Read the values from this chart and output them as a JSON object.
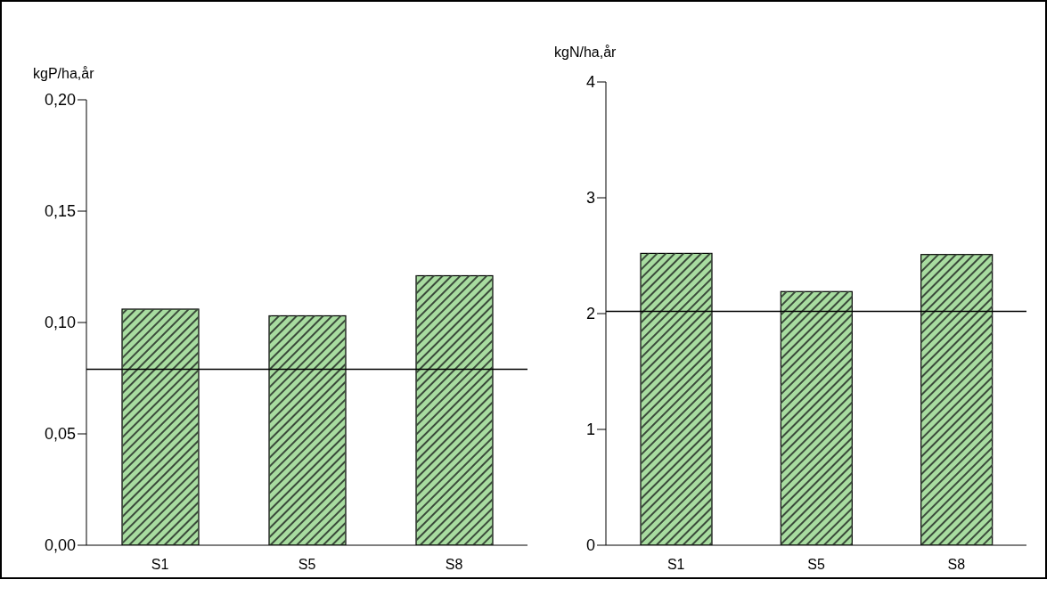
{
  "chart_data": [
    {
      "type": "bar",
      "ylabel": "kgP/ha,år",
      "categories": [
        "S1",
        "S5",
        "S8"
      ],
      "values": [
        0.106,
        0.103,
        0.121
      ],
      "color": "#a8dca0",
      "ylim": [
        0,
        0.2
      ],
      "yticks": [
        {
          "value": 0,
          "label": "0,00"
        },
        {
          "value": 0.05,
          "label": "0,05"
        },
        {
          "value": 0.1,
          "label": "0,10"
        },
        {
          "value": 0.15,
          "label": "0,15"
        },
        {
          "value": 0.2,
          "label": "0,20"
        }
      ],
      "grid": false,
      "legend": false,
      "ref_lines": [
        {
          "axis": "y",
          "value": 0.079,
          "color": "#000000"
        }
      ]
    },
    {
      "type": "bar",
      "ylabel": "kgN/ha,år",
      "categories": [
        "S1",
        "S5",
        "S8"
      ],
      "values": [
        2.52,
        2.19,
        2.51
      ],
      "color": "#a8dca0",
      "ylim": [
        0,
        4
      ],
      "yticks": [
        0,
        1,
        2,
        3,
        4
      ],
      "grid": false,
      "legend": false,
      "ref_lines": [
        {
          "axis": "y",
          "value": 2.02,
          "color": "#000000"
        }
      ]
    }
  ]
}
